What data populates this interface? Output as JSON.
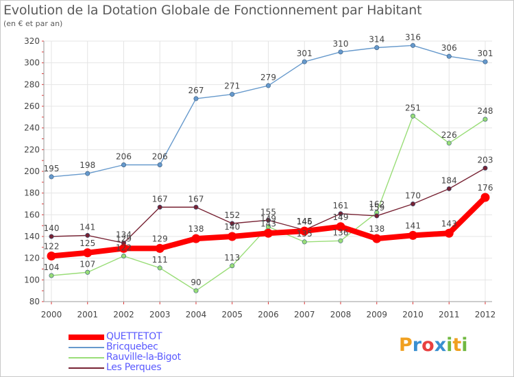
{
  "header": {
    "title": "Evolution de la Dotation Globale de Fonctionnement par Habitant",
    "subtitle": "(en € et par an)"
  },
  "brand": {
    "letters": [
      "P",
      "r",
      "o",
      "x",
      "i",
      "t",
      "i"
    ],
    "colors": [
      "#f0a020",
      "#3a8fd0",
      "#e84040",
      "#3a8fd0",
      "#70b840",
      "#f0a020",
      "#70b840"
    ]
  },
  "chart_data": {
    "type": "line",
    "title": "Evolution de la Dotation Globale de Fonctionnement par Habitant",
    "subtitle": "(en € et par an)",
    "xlabel": "",
    "ylabel": "",
    "x": [
      "2000",
      "2001",
      "2002",
      "2003",
      "2004",
      "2005",
      "2006",
      "2007",
      "2008",
      "2009",
      "2010",
      "2011",
      "2012"
    ],
    "ylim": [
      80,
      320
    ],
    "yticks": [
      "80",
      "100",
      "120",
      "140",
      "160",
      "180",
      "200",
      "220",
      "240",
      "260",
      "280",
      "300",
      "320"
    ],
    "grid": true,
    "legend_position": "bottom-left",
    "series": [
      {
        "name": "Bricquebec",
        "color": "#6699cc",
        "values": [
          195,
          198,
          206,
          206,
          267,
          271,
          279,
          301,
          310,
          314,
          316,
          306,
          301
        ],
        "labels": [
          "195",
          "198",
          "206",
          "206",
          "267",
          "271",
          "279",
          "301",
          "310",
          "314",
          "316",
          "306",
          "301"
        ]
      },
      {
        "name": "Rauville-la-Bigot",
        "color": "#99dd77",
        "values": [
          104,
          107,
          122,
          111,
          90,
          113,
          149,
          135,
          136,
          162,
          251,
          226,
          248
        ],
        "labels": [
          "104",
          "107",
          "122",
          "111",
          "90",
          "113",
          "149",
          "135",
          "136",
          "162",
          "251",
          "226",
          "248"
        ]
      },
      {
        "name": "Les Perques",
        "color": "#772233",
        "values": [
          140,
          141,
          134,
          167,
          167,
          152,
          155,
          146,
          161,
          159,
          170,
          184,
          203
        ],
        "labels": [
          "140",
          "141",
          "134",
          "167",
          "167",
          "152",
          "155",
          "146",
          "161",
          "159",
          "170",
          "184",
          "203"
        ]
      },
      {
        "name": "QUETTETOT",
        "color": "#ff0000",
        "values": [
          122,
          125,
          129,
          129,
          138,
          140,
          143,
          145,
          149,
          138,
          141,
          143,
          176
        ],
        "labels": [
          "122",
          "125",
          "129",
          "129",
          "138",
          "140",
          "143",
          "145",
          "149",
          "138",
          "141",
          "143",
          "176"
        ]
      }
    ]
  }
}
